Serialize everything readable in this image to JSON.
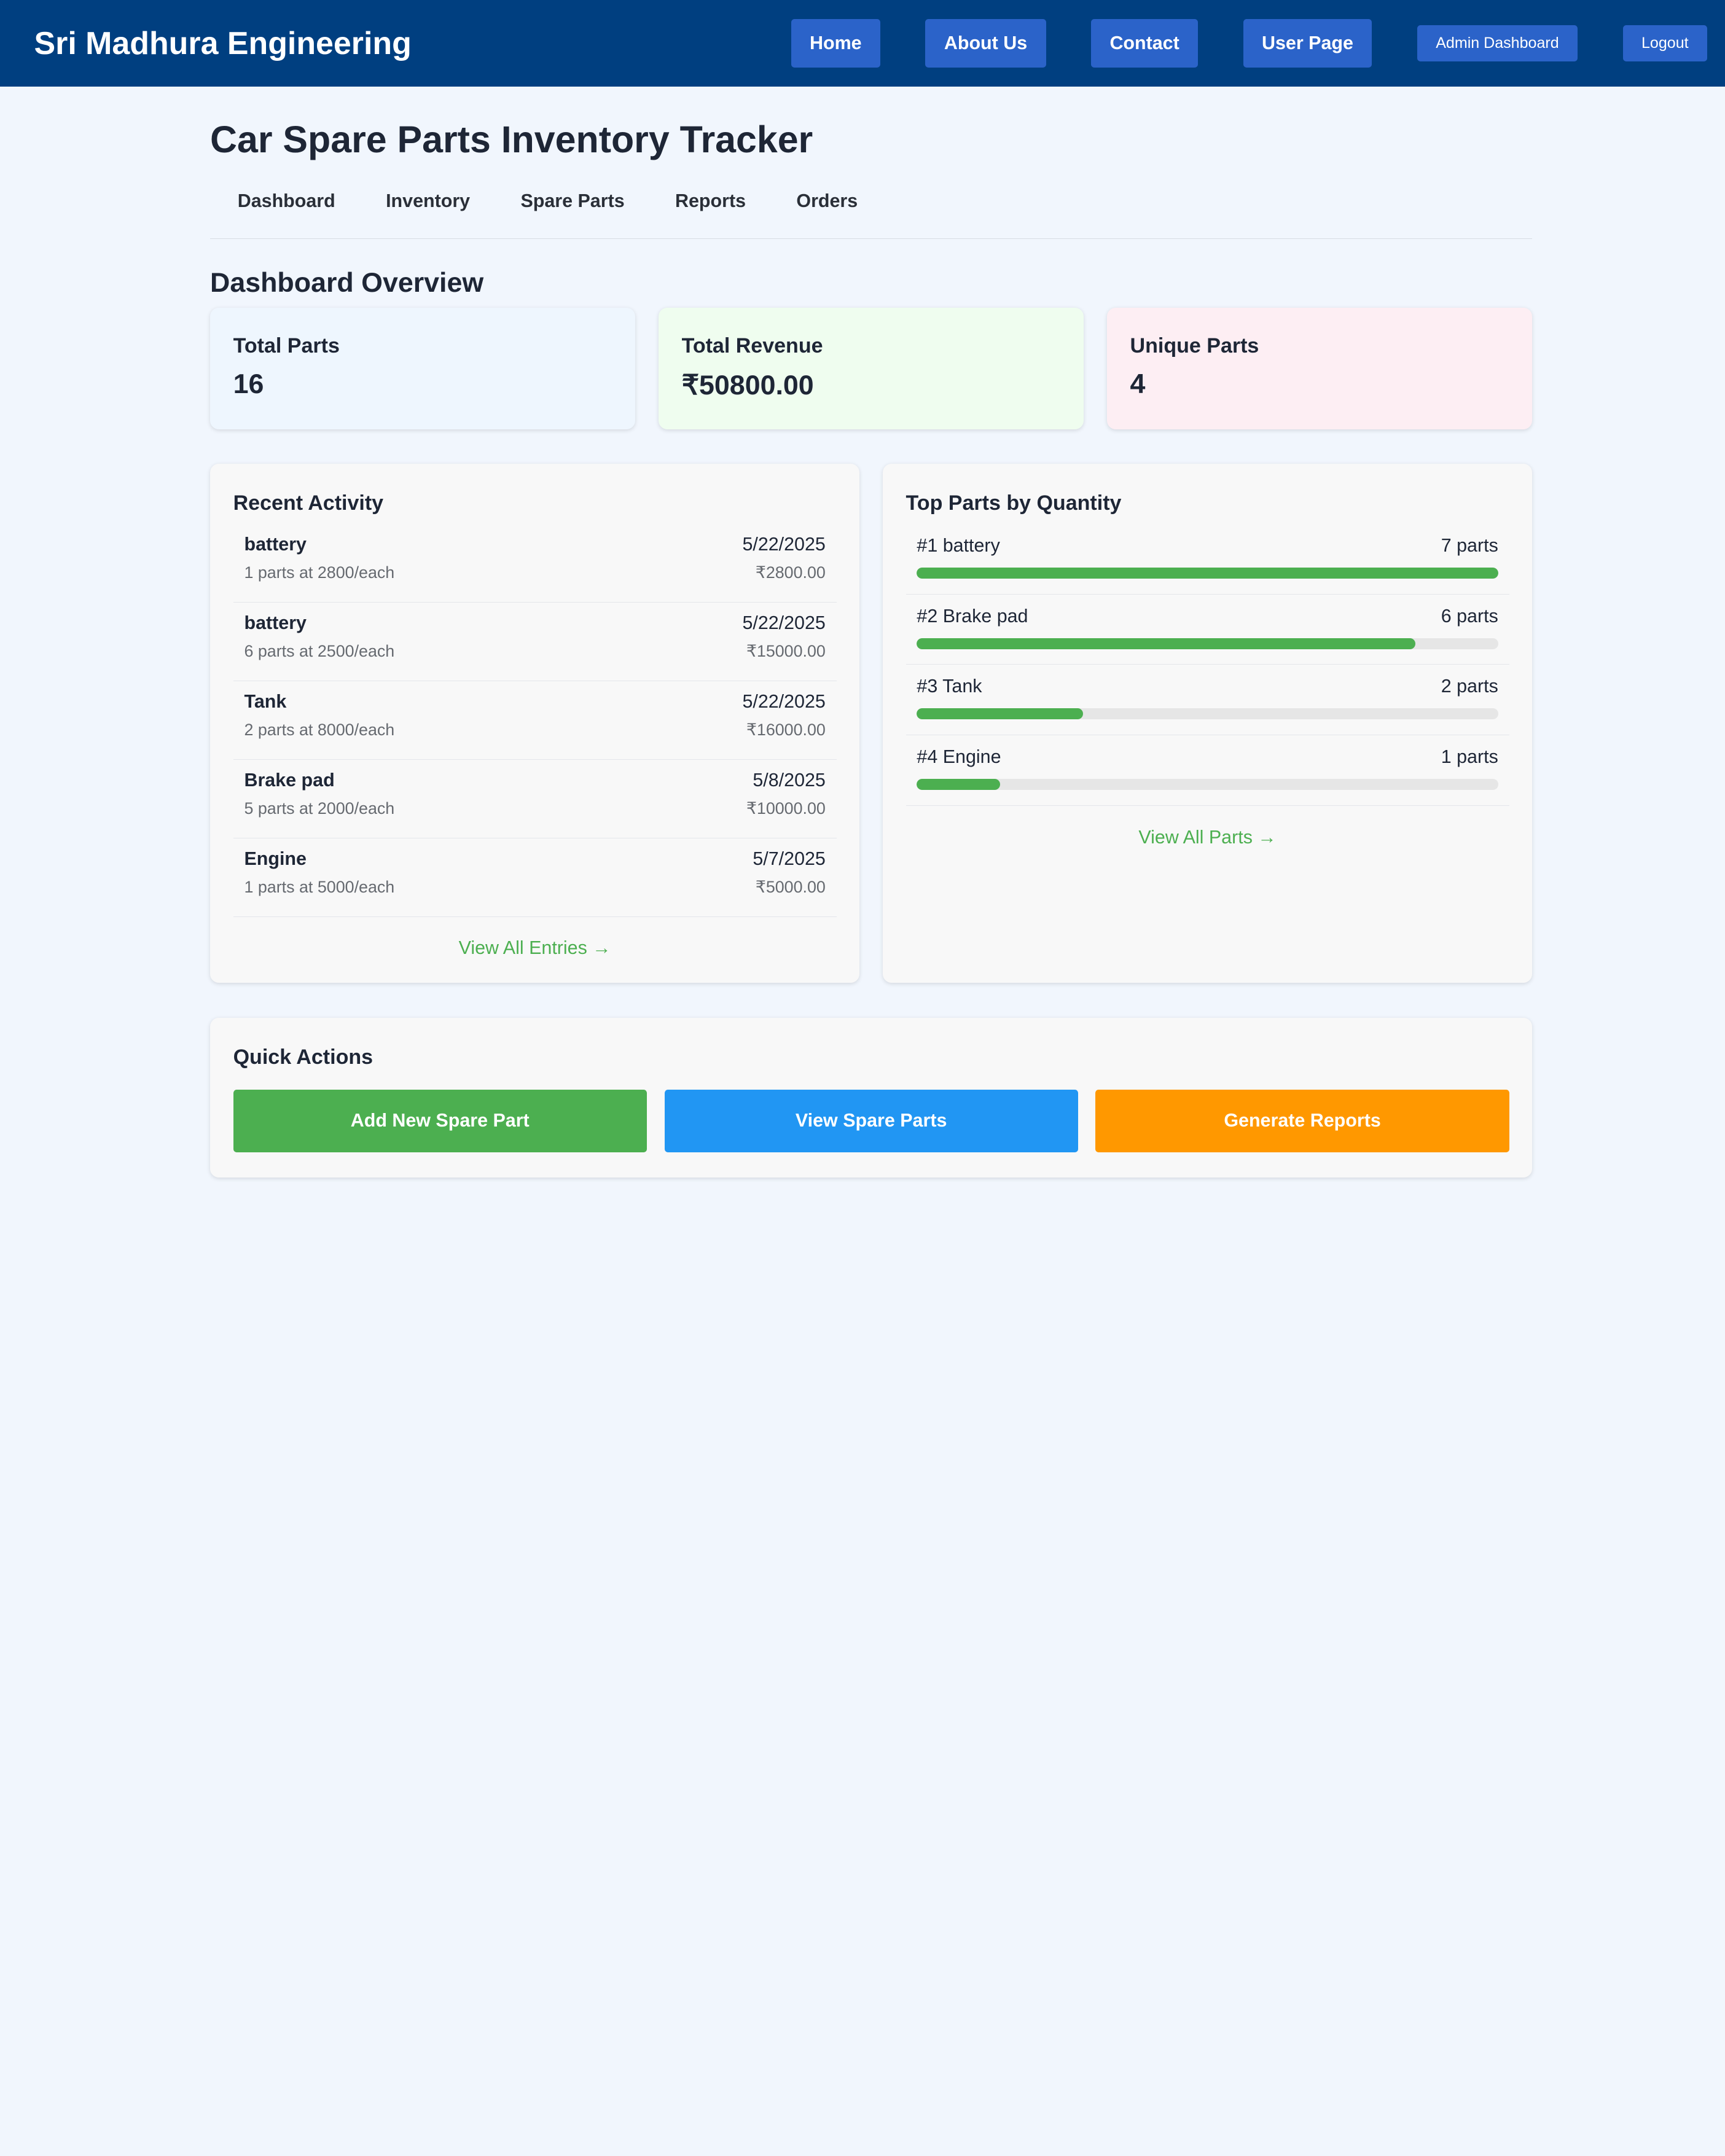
{
  "navbar": {
    "brand": "Sri Madhura Engineering",
    "links": [
      "Home",
      "About Us",
      "Contact",
      "User Page"
    ],
    "admin_label": "Admin Dashboard",
    "logout_label": "Logout",
    "color": "#003f80",
    "button_color": "#2b63c9"
  },
  "page_title": "Car Spare Parts Inventory Tracker",
  "sub_tabs": [
    "Dashboard",
    "Inventory",
    "Spare Parts",
    "Reports",
    "Orders"
  ],
  "overview_title": "Dashboard Overview",
  "stats": [
    {
      "label": "Total Parts",
      "value": "16",
      "bg": "#eef6fe"
    },
    {
      "label": "Total Revenue",
      "value": "₹50800.00",
      "bg": "#effdef"
    },
    {
      "label": "Unique Parts",
      "value": "4",
      "bg": "#fdeef3"
    }
  ],
  "recent_activity": {
    "title": "Recent Activity",
    "items": [
      {
        "name": "battery",
        "detail": "1 parts at 2800/each",
        "date": "5/22/2025",
        "amount": "₹2800.00"
      },
      {
        "name": "battery",
        "detail": "6 parts at 2500/each",
        "date": "5/22/2025",
        "amount": "₹15000.00"
      },
      {
        "name": "Tank",
        "detail": "2 parts at 8000/each",
        "date": "5/22/2025",
        "amount": "₹16000.00"
      },
      {
        "name": "Brake pad",
        "detail": "5 parts at 2000/each",
        "date": "5/8/2025",
        "amount": "₹10000.00"
      },
      {
        "name": "Engine",
        "detail": "1 parts at 5000/each",
        "date": "5/7/2025",
        "amount": "₹5000.00"
      }
    ],
    "view_all": "View All Entries →"
  },
  "top_parts": {
    "title": "Top Parts by Quantity",
    "items": [
      {
        "rank_name": "#1 battery",
        "count": "7 parts",
        "quantity": 7
      },
      {
        "rank_name": "#2 Brake pad",
        "count": "6 parts",
        "quantity": 6
      },
      {
        "rank_name": "#3 Tank",
        "count": "2 parts",
        "quantity": 2
      },
      {
        "rank_name": "#4 Engine",
        "count": "1 parts",
        "quantity": 1
      }
    ],
    "max_quantity": 7,
    "bar_color": "#4caf50",
    "view_all": "View All Parts →"
  },
  "quick_actions": {
    "title": "Quick Actions",
    "buttons": [
      {
        "label": "Add New Spare Part",
        "color": "#4caf50"
      },
      {
        "label": "View Spare Parts",
        "color": "#2196f3"
      },
      {
        "label": "Generate Reports",
        "color": "#ff9800"
      }
    ]
  }
}
